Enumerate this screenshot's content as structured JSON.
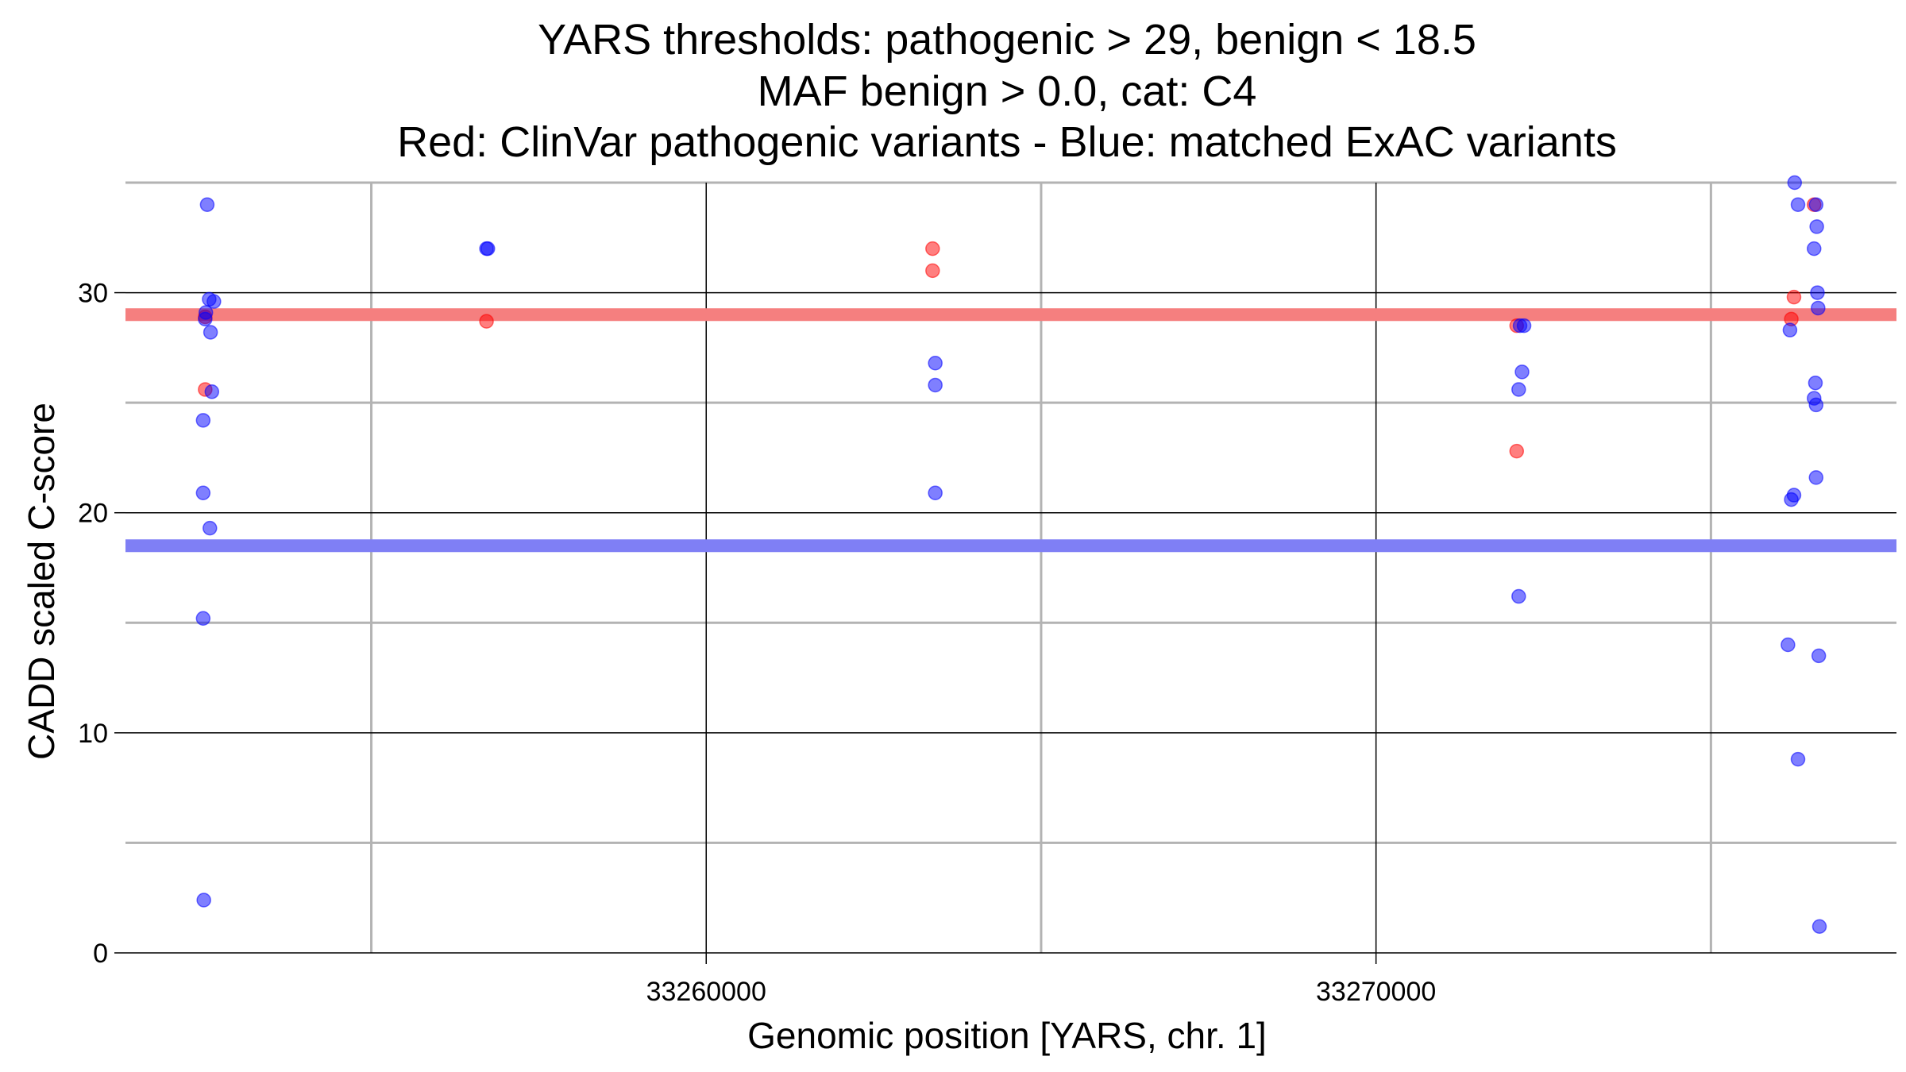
{
  "chart_data": {
    "type": "scatter",
    "title_lines": [
      "YARS thresholds: pathogenic > 29, benign < 18.5",
      "MAF benign > 0.0, cat: C4",
      "Red: ClinVar pathogenic variants - Blue: matched ExAC variants"
    ],
    "xlabel": "Genomic position [YARS, chr. 1]",
    "ylabel": "CADD scaled C-score",
    "xlim": [
      33251330,
      33277770
    ],
    "ylim": [
      0,
      35
    ],
    "x_ticks_major": [
      33260000,
      33270000
    ],
    "x_tick_labels": [
      "33260000",
      "33270000"
    ],
    "x_gridlines_minor": [
      33255000,
      33265000,
      33275000
    ],
    "y_ticks_major": [
      0,
      10,
      20,
      30
    ],
    "y_tick_labels": [
      "0",
      "10",
      "20",
      "30"
    ],
    "y_gridlines_minor": [
      5,
      15,
      25,
      35
    ],
    "grid": true,
    "thresholds": [
      {
        "name": "pathogenic",
        "y": 29,
        "color": "#f57f7f"
      },
      {
        "name": "benign",
        "y": 18.5,
        "color": "#7f7ff5"
      }
    ],
    "series": [
      {
        "color": "#ff0000",
        "points": [
          {
            "x": 33252520,
            "y": 28.9
          },
          {
            "x": 33252520,
            "y": 25.6
          },
          {
            "x": 33256720,
            "y": 28.7
          },
          {
            "x": 33263380,
            "y": 32.0
          },
          {
            "x": 33263380,
            "y": 31.0
          },
          {
            "x": 33272100,
            "y": 28.5
          },
          {
            "x": 33272100,
            "y": 22.8
          },
          {
            "x": 33276240,
            "y": 29.8
          },
          {
            "x": 33276200,
            "y": 28.8
          },
          {
            "x": 33276540,
            "y": 34.0
          }
        ]
      },
      {
        "color": "#0000ff",
        "points": [
          {
            "x": 33252550,
            "y": 34.0
          },
          {
            "x": 33252580,
            "y": 29.7
          },
          {
            "x": 33252650,
            "y": 29.6
          },
          {
            "x": 33252530,
            "y": 29.1
          },
          {
            "x": 33252520,
            "y": 28.8
          },
          {
            "x": 33252600,
            "y": 28.2
          },
          {
            "x": 33252620,
            "y": 25.5
          },
          {
            "x": 33252490,
            "y": 24.2
          },
          {
            "x": 33252490,
            "y": 20.9
          },
          {
            "x": 33252590,
            "y": 19.3
          },
          {
            "x": 33252490,
            "y": 15.2
          },
          {
            "x": 33252500,
            "y": 2.4
          },
          {
            "x": 33256720,
            "y": 32.0
          },
          {
            "x": 33256740,
            "y": 32.0
          },
          {
            "x": 33263420,
            "y": 26.8
          },
          {
            "x": 33263420,
            "y": 25.8
          },
          {
            "x": 33263420,
            "y": 20.9
          },
          {
            "x": 33272150,
            "y": 28.5
          },
          {
            "x": 33272210,
            "y": 28.5
          },
          {
            "x": 33272180,
            "y": 26.4
          },
          {
            "x": 33272130,
            "y": 25.6
          },
          {
            "x": 33272130,
            "y": 16.2
          },
          {
            "x": 33276250,
            "y": 35.0
          },
          {
            "x": 33276300,
            "y": 34.0
          },
          {
            "x": 33276570,
            "y": 34.0
          },
          {
            "x": 33276580,
            "y": 33.0
          },
          {
            "x": 33276540,
            "y": 32.0
          },
          {
            "x": 33276590,
            "y": 30.0
          },
          {
            "x": 33276600,
            "y": 29.3
          },
          {
            "x": 33276180,
            "y": 28.3
          },
          {
            "x": 33276560,
            "y": 25.9
          },
          {
            "x": 33276540,
            "y": 25.2
          },
          {
            "x": 33276570,
            "y": 24.9
          },
          {
            "x": 33276570,
            "y": 21.6
          },
          {
            "x": 33276240,
            "y": 20.8
          },
          {
            "x": 33276200,
            "y": 20.6
          },
          {
            "x": 33276150,
            "y": 14.0
          },
          {
            "x": 33276610,
            "y": 13.5
          },
          {
            "x": 33276300,
            "y": 8.8
          },
          {
            "x": 33276620,
            "y": 1.2
          }
        ]
      }
    ]
  }
}
